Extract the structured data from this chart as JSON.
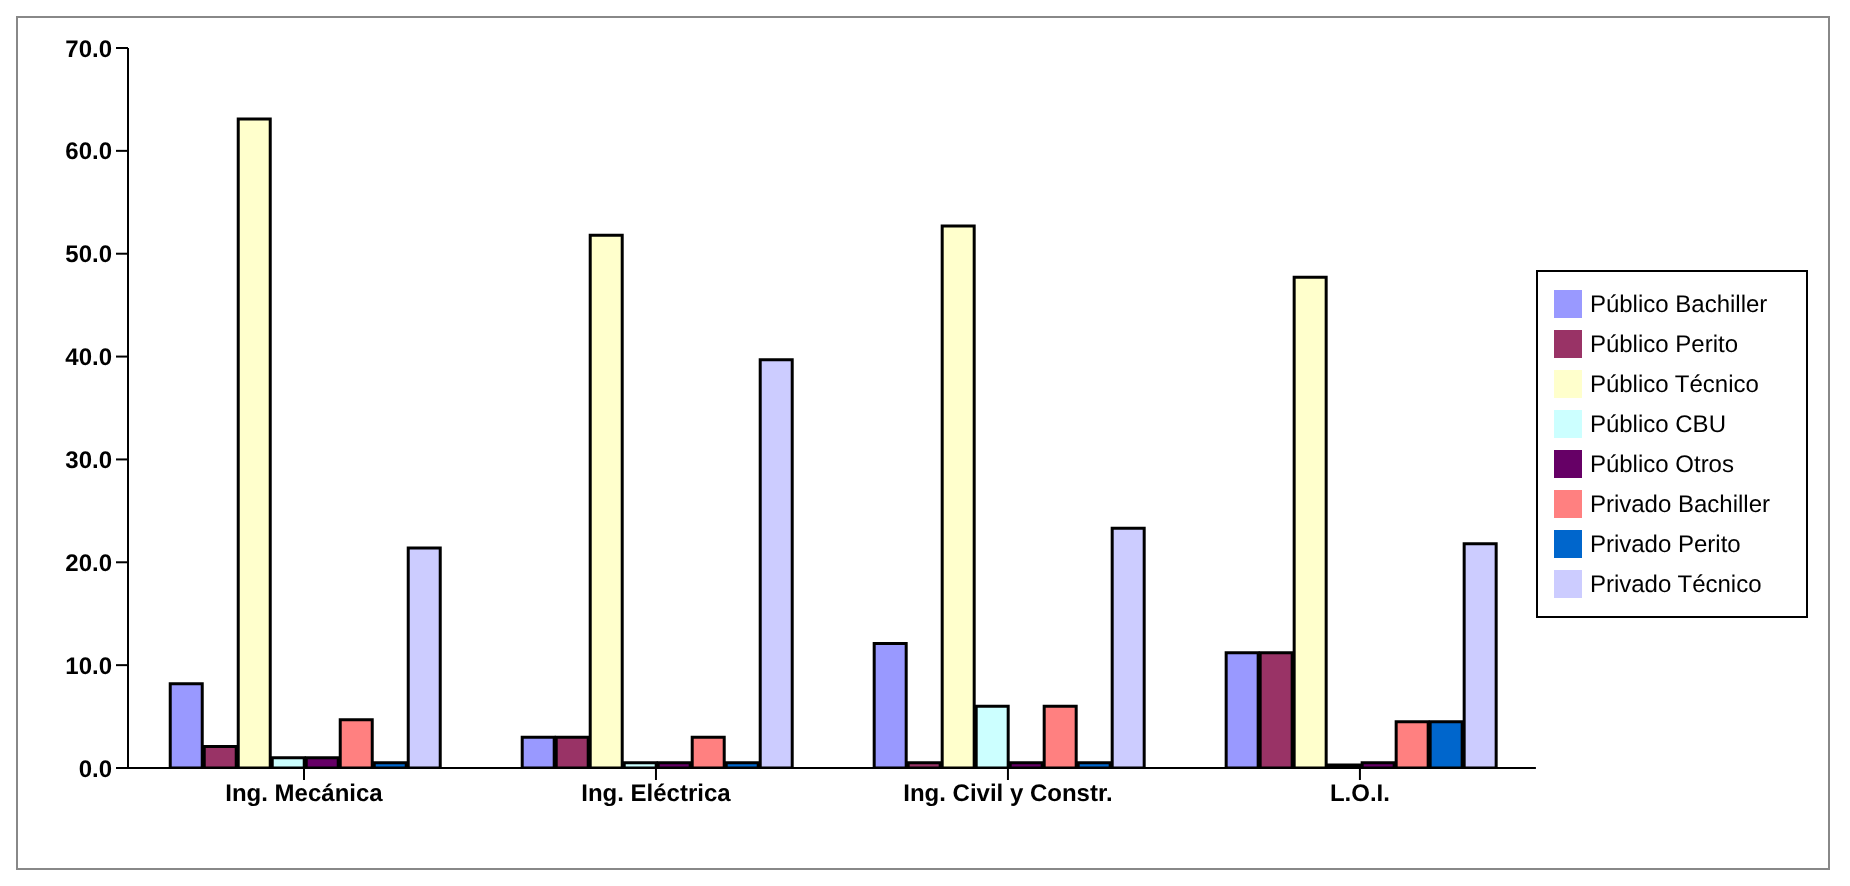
{
  "chart_data": {
    "type": "bar",
    "categories": [
      "Ing. Mecánica",
      "Ing. Eléctrica",
      "Ing. Civil y Constr.",
      "L.O.I."
    ],
    "series": [
      {
        "name": "Público Bachiller",
        "color": "#9999ff",
        "values": [
          8.2,
          3.0,
          12.1,
          11.2
        ]
      },
      {
        "name": "Público Perito",
        "color": "#993366",
        "values": [
          2.1,
          3.0,
          0.5,
          11.2
        ]
      },
      {
        "name": "Público Técnico",
        "color": "#ffffcc",
        "values": [
          63.1,
          51.8,
          52.7,
          47.7
        ]
      },
      {
        "name": "Público CBU",
        "color": "#ccffff",
        "values": [
          1.0,
          0.5,
          6.0,
          0.3
        ]
      },
      {
        "name": "Público Otros",
        "color": "#660066",
        "values": [
          1.0,
          0.5,
          0.5,
          0.5
        ]
      },
      {
        "name": "Privado Bachiller",
        "color": "#ff8080",
        "values": [
          4.7,
          3.0,
          6.0,
          4.5
        ]
      },
      {
        "name": "Privado Perito",
        "color": "#0066cc",
        "values": [
          0.5,
          0.5,
          0.5,
          4.5
        ]
      },
      {
        "name": "Privado Técnico",
        "color": "#ccccff",
        "values": [
          21.4,
          39.7,
          23.3,
          21.8
        ]
      }
    ],
    "ylim": [
      0,
      70
    ],
    "yticks": [
      {
        "value": 0,
        "label": "0.0"
      },
      {
        "value": 10,
        "label": "10.0"
      },
      {
        "value": 20,
        "label": "20.0"
      },
      {
        "value": 30,
        "label": "30.0"
      },
      {
        "value": 40,
        "label": "40.0"
      },
      {
        "value": 50,
        "label": "50.0"
      },
      {
        "value": 60,
        "label": "60.0"
      },
      {
        "value": 70,
        "label": "70.0"
      }
    ],
    "grid": false,
    "legend": "right"
  }
}
